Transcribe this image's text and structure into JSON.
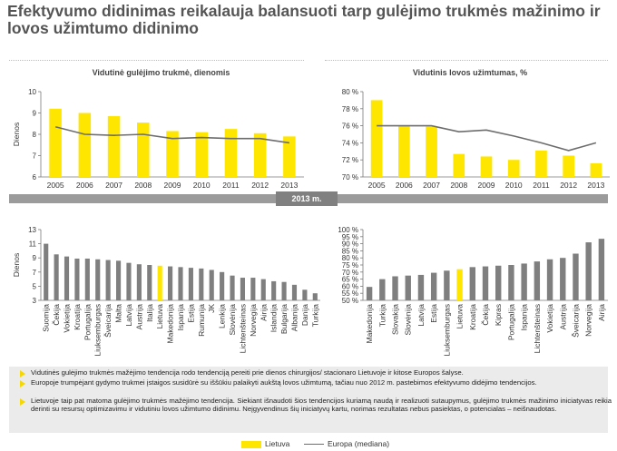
{
  "title": "Efektyvumo didinimas reikalauja balansuoti tarp gulėjimo trukmės mažinimo ir lovos užimtumo didinimo",
  "band_label": "2013 m.",
  "legend": {
    "lietuva": "Lietuva",
    "europa": "Europa (mediana)"
  },
  "colors": {
    "lietuva_bar": "#ffe600",
    "other_bar": "#7f7f7f",
    "europe_line": "#6d6d6d"
  },
  "notes": [
    "Vidutinės gulėjimo trukmės mažėjimo tendencija rodo tendenciją pereiti prie dienos chirurgijos/ stacionaro Lietuvoje ir kitose Europos šalyse.",
    "Europoje trumpėjant gydymo trukmei įstaigos susidūrė su iššūkiu palaikyti aukštą lovos užimtumą, tačiau nuo 2012 m. pastebimos efektyvumo didėjimo tendencijos.",
    "Lietuvoje taip pat matoma gulėjimo trukmės mažėjimo tendencija. Siekiant išnaudoti šios tendencijos kuriamą naudą ir realizuoti sutaupymus, gulėjimo trukmės mažinimo iniciatyvas reikia derinti su resursų optimizavimu ir vidutiniu lovos užimtumo didinimu. Neįgyvendinus šių iniciatyvų kartu, norimas rezultatas nebus pasiektas, o potencialas – neišnaudotas."
  ],
  "chart_data": [
    {
      "type": "bar",
      "title": "Vidutinė gulėjimo trukmė, dienomis",
      "ylabel": "Dienos",
      "ylim": [
        6,
        10
      ],
      "yticks": [
        "6",
        "7",
        "8",
        "9",
        "10"
      ],
      "categories": [
        "2005",
        "2006",
        "2007",
        "2008",
        "2009",
        "2010",
        "2011",
        "2012",
        "2013"
      ],
      "series": [
        {
          "name": "Lietuva",
          "type": "bar",
          "values": [
            9.2,
            9.0,
            8.85,
            8.55,
            8.15,
            8.1,
            8.25,
            8.05,
            7.9
          ]
        },
        {
          "name": "Europa (mediana)",
          "type": "line",
          "values": [
            8.35,
            8.0,
            7.95,
            8.0,
            7.8,
            7.85,
            7.8,
            7.8,
            7.6
          ]
        }
      ]
    },
    {
      "type": "bar",
      "title": "Vidutinis lovos užimtumas, %",
      "ylabel": "",
      "ylim": [
        70,
        80
      ],
      "yticks": [
        "70 %",
        "72 %",
        "74 %",
        "76 %",
        "78 %",
        "80 %"
      ],
      "categories": [
        "2005",
        "2006",
        "2007",
        "2008",
        "2009",
        "2010",
        "2011",
        "2012",
        "2013"
      ],
      "series": [
        {
          "name": "Lietuva",
          "type": "bar",
          "values": [
            79.0,
            76.0,
            75.9,
            72.7,
            72.4,
            72.0,
            73.1,
            72.5,
            71.6
          ]
        },
        {
          "name": "Europa (mediana)",
          "type": "line",
          "values": [
            76.0,
            76.0,
            76.0,
            75.3,
            75.5,
            74.8,
            74.0,
            73.1,
            74.0
          ]
        }
      ]
    },
    {
      "type": "bar",
      "title": "",
      "ylabel": "Dienos",
      "ylim": [
        3,
        13
      ],
      "yticks": [
        "3",
        "5",
        "7",
        "9",
        "11",
        "13"
      ],
      "highlight": "Lietuva",
      "categories": [
        "Suomija",
        "Čekija",
        "Vokietija",
        "Kroatija",
        "Portugalija",
        "Liuksemburgas",
        "Šveicarija",
        "Malta",
        "Latvija",
        "Austrija",
        "Italija",
        "Lietuva",
        "Makedonija",
        "Ispanija",
        "Estija",
        "Rumunija",
        "JK",
        "Lenkija",
        "Slovėnija",
        "Lichtenšteinas",
        "Norvegija",
        "Airija",
        "Islandija",
        "Bulgarija",
        "Albanija",
        "Danija",
        "Turkija"
      ],
      "values": [
        11.0,
        9.5,
        9.2,
        8.9,
        8.9,
        8.8,
        8.7,
        8.6,
        8.3,
        8.1,
        8.0,
        7.9,
        7.8,
        7.7,
        7.6,
        7.5,
        7.3,
        7.0,
        6.5,
        6.2,
        6.2,
        6.0,
        5.7,
        5.6,
        5.2,
        4.5,
        4.0
      ]
    },
    {
      "type": "bar",
      "title": "",
      "ylabel": "",
      "ylim": [
        50,
        100
      ],
      "yticks": [
        "50 %",
        "55 %",
        "60 %",
        "65 %",
        "70 %",
        "75 %",
        "80 %",
        "85 %",
        "90 %",
        "95 %",
        "100 %"
      ],
      "highlight": "Lietuva",
      "categories": [
        "Makedonija",
        "Turkija",
        "Slovakija",
        "Slovėnija",
        "Latvija",
        "Estija",
        "Liuksemburgas",
        "Lietuva",
        "Kroatija",
        "Čekija",
        "Kipras",
        "Portugalija",
        "Ispanija",
        "Lichtenšteinas",
        "Vokietija",
        "Austrija",
        "Šveicarija",
        "Norvegija",
        "Airija"
      ],
      "values": [
        59.5,
        65.0,
        67.0,
        67.5,
        68.0,
        69.5,
        71.0,
        72.0,
        73.5,
        74.0,
        74.5,
        75.0,
        76.0,
        77.5,
        79.0,
        80.0,
        83.0,
        91.0,
        93.5
      ]
    }
  ]
}
